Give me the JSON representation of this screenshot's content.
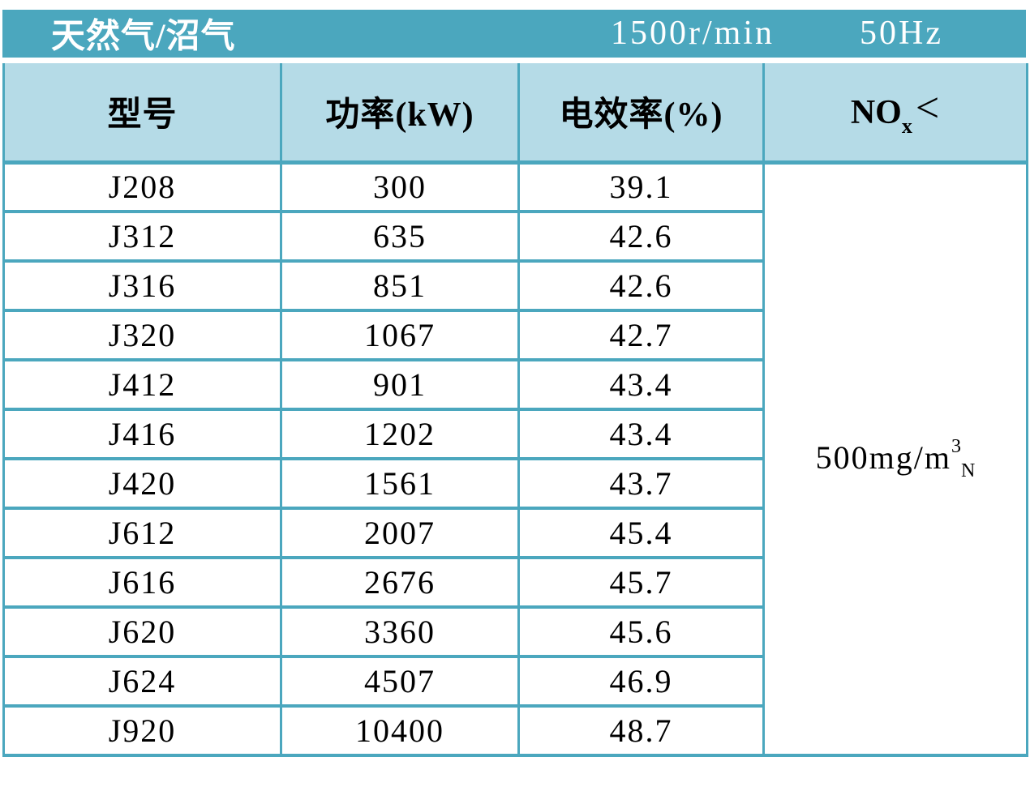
{
  "band": {
    "fuel_type": "天然气/沼气",
    "speed": "1500r/min",
    "frequency": "50Hz"
  },
  "table": {
    "headers": {
      "model": "型号",
      "power": "功率(kW)",
      "efficiency": "电效率(%)"
    },
    "nox_header": {
      "base": "NO",
      "sub": "x",
      "lt": "<"
    },
    "nox_limit": {
      "prefix": "500mg/m",
      "sup": "3",
      "sub": "N"
    },
    "rows": [
      {
        "model": "J208",
        "power": "300",
        "efficiency": "39.1"
      },
      {
        "model": "J312",
        "power": "635",
        "efficiency": "42.6"
      },
      {
        "model": "J316",
        "power": "851",
        "efficiency": "42.6"
      },
      {
        "model": "J320",
        "power": "1067",
        "efficiency": "42.7"
      },
      {
        "model": "J412",
        "power": "901",
        "efficiency": "43.4"
      },
      {
        "model": "J416",
        "power": "1202",
        "efficiency": "43.4"
      },
      {
        "model": "J420",
        "power": "1561",
        "efficiency": "43.7"
      },
      {
        "model": "J612",
        "power": "2007",
        "efficiency": "45.4"
      },
      {
        "model": "J616",
        "power": "2676",
        "efficiency": "45.7"
      },
      {
        "model": "J620",
        "power": "3360",
        "efficiency": "45.6"
      },
      {
        "model": "J624",
        "power": "4507",
        "efficiency": "46.9"
      },
      {
        "model": "J920",
        "power": "10400",
        "efficiency": "48.7"
      }
    ]
  },
  "colors": {
    "teal": "#4BA7BE",
    "header_bg": "#B5DBE7",
    "text_dark": "#000000",
    "text_light": "#FFFFFF"
  }
}
